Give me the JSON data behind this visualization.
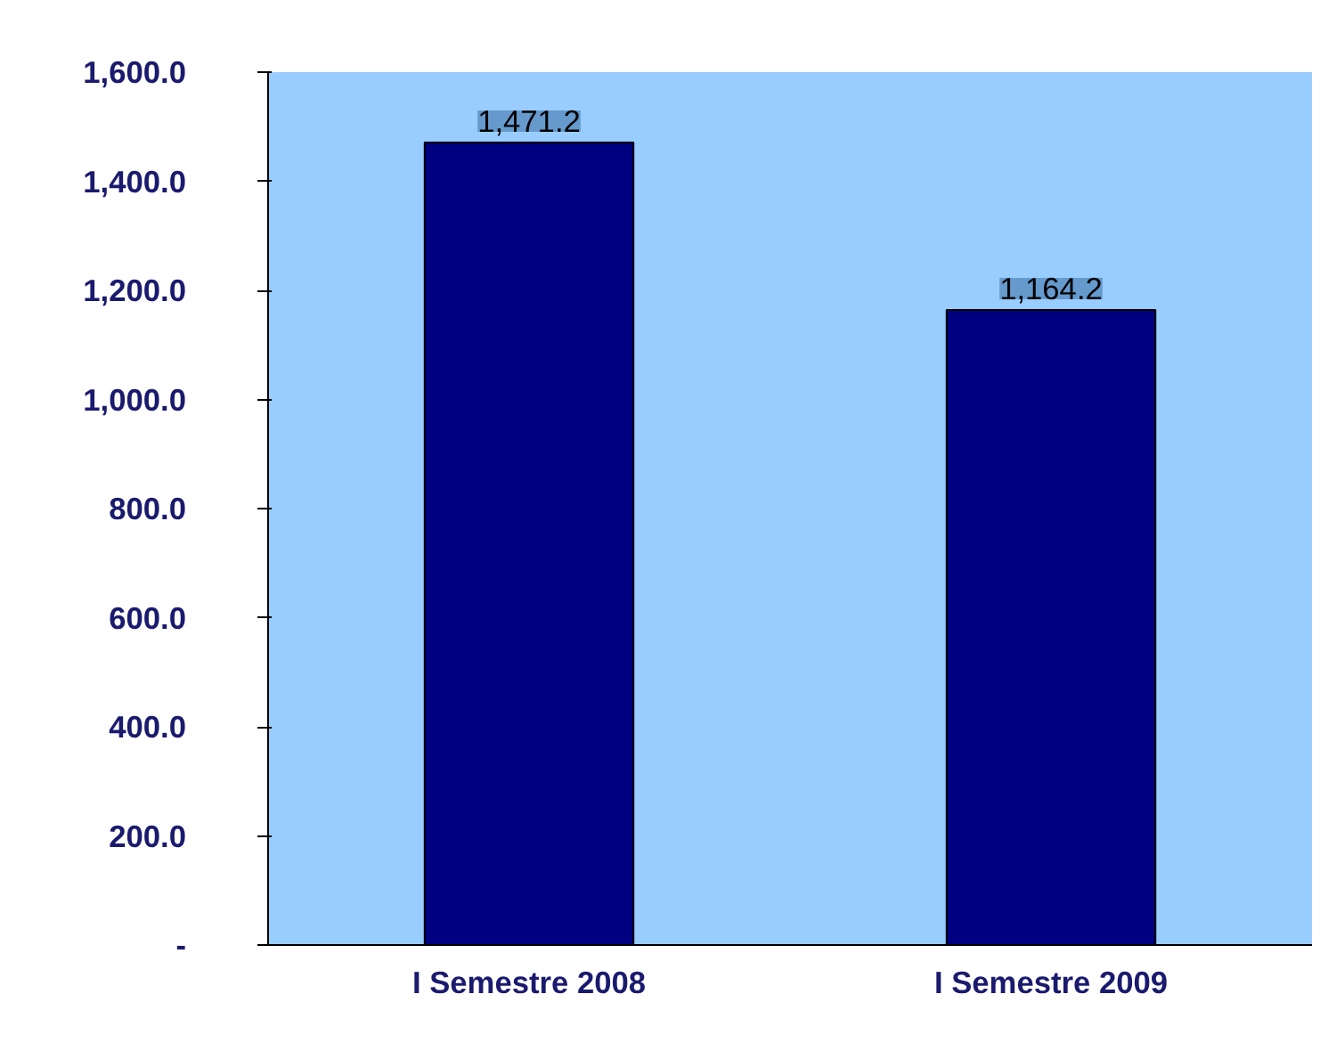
{
  "chart_data": {
    "type": "bar",
    "categories": [
      "I Semestre 2008",
      "I Semestre 2009"
    ],
    "series": [
      {
        "color": "#000080",
        "values": [
          1471.2,
          1164.2
        ],
        "value_labels": [
          "1,471.2",
          "1,164.2"
        ]
      }
    ],
    "ylim": [
      0,
      1600
    ],
    "yticks": [
      {
        "value": 0,
        "label": "-"
      },
      {
        "value": 200,
        "label": "200.0"
      },
      {
        "value": 400,
        "label": "400.0"
      },
      {
        "value": 600,
        "label": "600.0"
      },
      {
        "value": 800,
        "label": "800.0"
      },
      {
        "value": 1000,
        "label": "1,000.0"
      },
      {
        "value": 1200,
        "label": "1,200.0"
      },
      {
        "value": 1400,
        "label": "1,400.0"
      },
      {
        "value": 1600,
        "label": "1,600.0"
      }
    ],
    "grid": false
  }
}
